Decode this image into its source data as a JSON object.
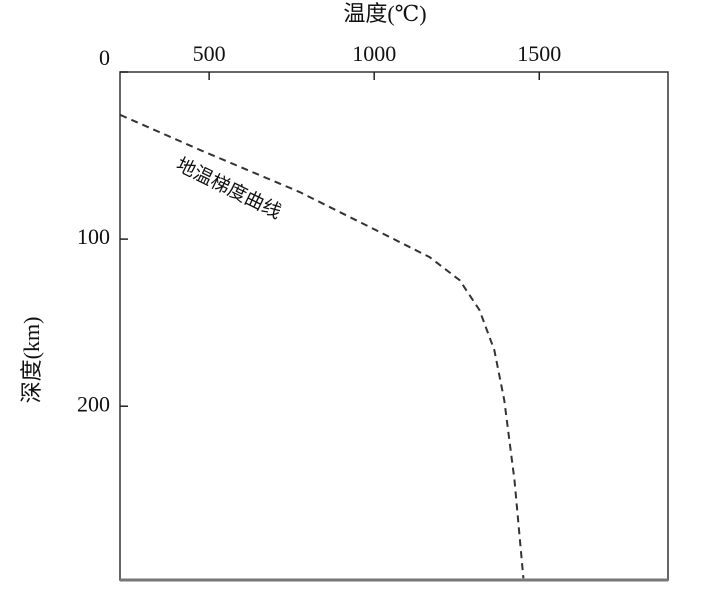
{
  "chart_data": {
    "type": "line",
    "title": "温度(℃)",
    "y_label": "深度(km)",
    "annotation": "地温梯度曲线",
    "x": [
      231,
      473,
      775,
      1017,
      1168,
      1259,
      1319,
      1364,
      1394,
      1425,
      1452
    ],
    "series": [
      {
        "name": "地温梯度曲线",
        "color": "#333333",
        "values": [
          25.7,
          46.7,
          71.9,
          95.8,
          110.8,
          124.6,
          142.5,
          166.5,
          196.4,
          244.3,
          303
        ]
      }
    ],
    "xlim": [
      230,
      1890
    ],
    "xticks": [
      500,
      1000,
      1500
    ],
    "x_axis_position": "top",
    "ylim": [
      0,
      304
    ],
    "yticks": [
      0,
      100,
      200
    ],
    "y_inverted": true,
    "line_style": "dashed",
    "grid": false,
    "legend": false
  }
}
